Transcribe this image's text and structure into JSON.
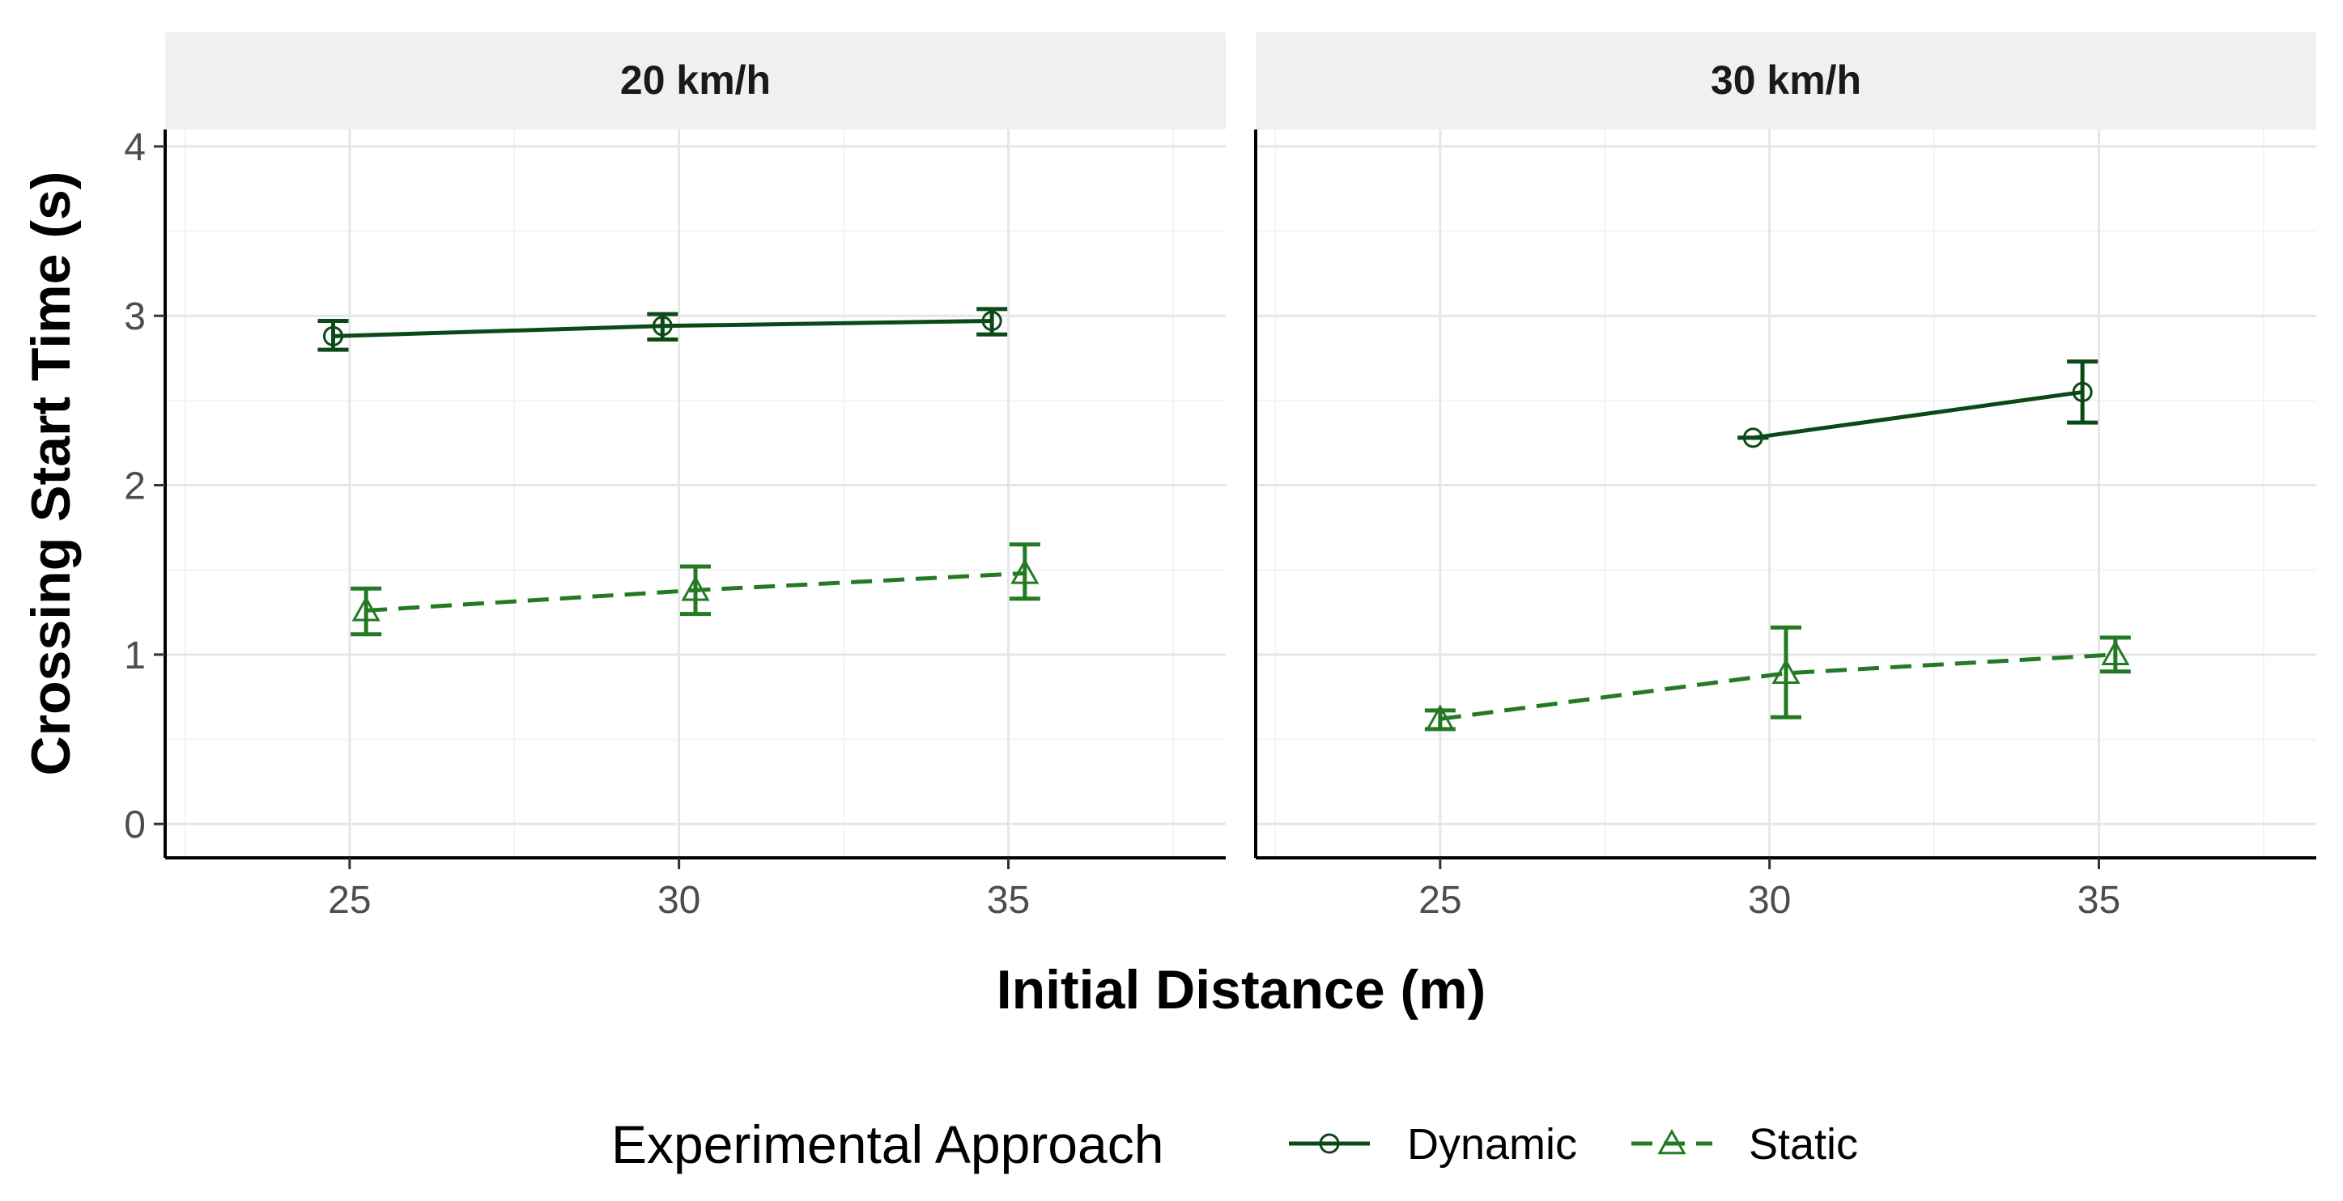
{
  "chart_data": {
    "type": "line",
    "x_label": "Initial Distance (m)",
    "y_label": "Crossing Start Time (s)",
    "x_ticks": [
      25,
      30,
      35
    ],
    "y_ticks": [
      0,
      1,
      2,
      3,
      4
    ],
    "xlim": [
      22.2,
      38.3
    ],
    "ylim": [
      -0.2,
      4.1
    ],
    "grid": true,
    "legend": {
      "title": "Experimental Approach",
      "position": "bottom",
      "entries": [
        {
          "name": "Dynamic",
          "marker": "circle",
          "linetype": "solid"
        },
        {
          "name": "Static",
          "marker": "triangle",
          "linetype": "dashed"
        }
      ]
    },
    "colors": {
      "Dynamic": "#0b4a16",
      "Static": "#237a23"
    },
    "panels": [
      {
        "title": "20 km/h",
        "series": [
          {
            "name": "Dynamic",
            "x": [
              24.75,
              29.75,
              34.75
            ],
            "y": [
              2.88,
              2.94,
              2.97
            ],
            "err_low": [
              2.8,
              2.86,
              2.89
            ],
            "err_high": [
              2.97,
              3.01,
              3.04
            ]
          },
          {
            "name": "Static",
            "x": [
              25.25,
              30.25,
              35.25
            ],
            "y": [
              1.26,
              1.38,
              1.48
            ],
            "err_low": [
              1.12,
              1.24,
              1.33
            ],
            "err_high": [
              1.39,
              1.52,
              1.65
            ]
          }
        ]
      },
      {
        "title": "30 km/h",
        "series": [
          {
            "name": "Dynamic",
            "x": [
              29.75,
              34.75
            ],
            "y": [
              2.28,
              2.55
            ],
            "err_low": [
              2.28,
              2.37
            ],
            "err_high": [
              2.28,
              2.73
            ]
          },
          {
            "name": "Static",
            "x": [
              25.0,
              30.25,
              35.25
            ],
            "y": [
              0.62,
              0.89,
              1.0
            ],
            "err_low": [
              0.56,
              0.63,
              0.9
            ],
            "err_high": [
              0.67,
              1.16,
              1.1
            ]
          }
        ]
      }
    ]
  }
}
